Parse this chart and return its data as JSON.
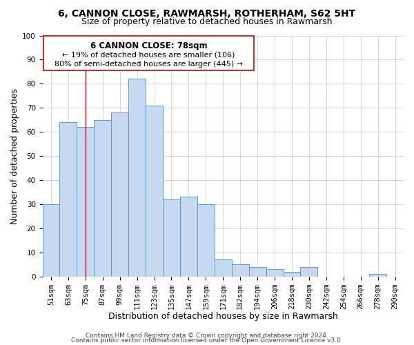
{
  "title": "6, CANNON CLOSE, RAWMARSH, ROTHERHAM, S62 5HT",
  "subtitle": "Size of property relative to detached houses in Rawmarsh",
  "xlabel": "Distribution of detached houses by size in Rawmarsh",
  "ylabel": "Number of detached properties",
  "bar_color": "#c7d9f0",
  "bar_edge_color": "#5b9bd5",
  "categories": [
    "51sqm",
    "63sqm",
    "75sqm",
    "87sqm",
    "99sqm",
    "111sqm",
    "123sqm",
    "135sqm",
    "147sqm",
    "159sqm",
    "171sqm",
    "182sqm",
    "194sqm",
    "206sqm",
    "218sqm",
    "230sqm",
    "242sqm",
    "254sqm",
    "266sqm",
    "278sqm",
    "290sqm"
  ],
  "values": [
    30,
    64,
    62,
    65,
    68,
    82,
    71,
    32,
    33,
    30,
    7,
    5,
    4,
    3,
    2,
    4,
    0,
    0,
    0,
    1,
    0
  ],
  "ylim": [
    0,
    100
  ],
  "yticks": [
    0,
    10,
    20,
    30,
    40,
    50,
    60,
    70,
    80,
    90,
    100
  ],
  "vline_x": 2,
  "vline_color": "#cc0000",
  "ann_line1": "6 CANNON CLOSE: 78sqm",
  "ann_line2": "← 19% of detached houses are smaller (106)",
  "ann_line3": "80% of semi-detached houses are larger (445) →",
  "footer_line1": "Contains HM Land Registry data © Crown copyright and database right 2024.",
  "footer_line2": "Contains public sector information licensed under the Open Government Licence v3.0.",
  "background_color": "#ffffff",
  "grid_color": "#d0d0d0",
  "title_fontsize": 10,
  "subtitle_fontsize": 9,
  "axis_label_fontsize": 9,
  "tick_fontsize": 7.5,
  "annotation_fontsize": 8.5,
  "footer_fontsize": 6.5
}
